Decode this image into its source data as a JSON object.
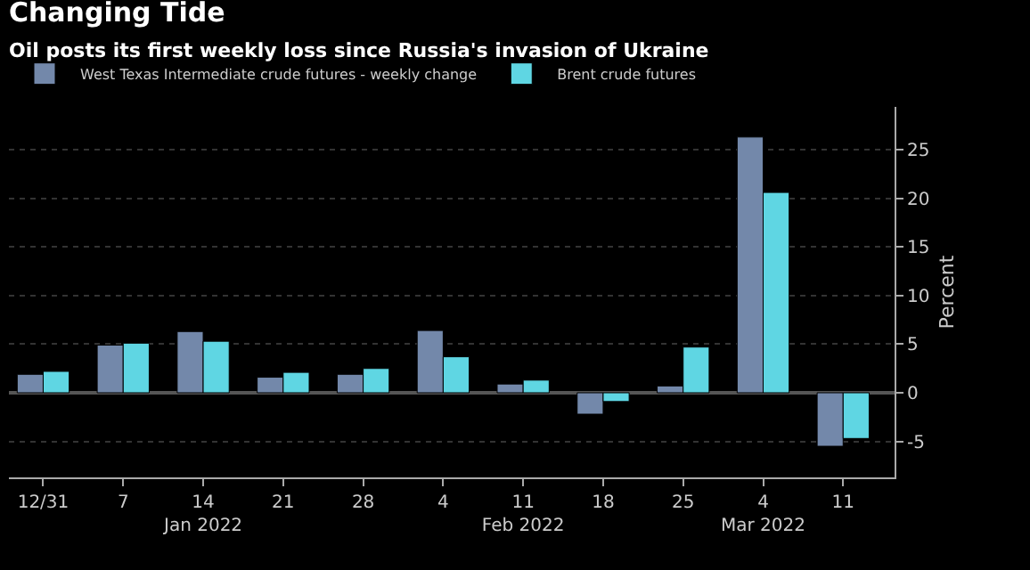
{
  "chart_data": {
    "type": "bar",
    "title": "Changing Tide",
    "subtitle": "Oil posts its first weekly loss since Russia's invasion of Ukraine",
    "ylabel": "Percent",
    "x": [
      "2021-12-31",
      "2022-01-07",
      "2022-01-14",
      "2022-01-21",
      "2022-01-28",
      "2022-02-04",
      "2022-02-11",
      "2022-02-18",
      "2022-02-25",
      "2022-03-04",
      "2022-03-11"
    ],
    "series": [
      {
        "name": "West Texas Intermediate crude futures - weekly change",
        "color": "#7388aa",
        "values": [
          1.9,
          4.9,
          6.3,
          1.6,
          1.9,
          6.4,
          0.9,
          -2.2,
          0.7,
          26.3,
          -5.5
        ]
      },
      {
        "name": "Brent crude futures",
        "color": "#5fd6e3",
        "values": [
          2.2,
          5.1,
          5.3,
          2.1,
          2.5,
          3.7,
          1.3,
          -0.9,
          4.7,
          20.6,
          -4.7
        ]
      }
    ],
    "xlim": [
      "2021-12-28",
      "2022-03-15T12:00"
    ],
    "xticks": [
      {
        "value": "2021-12-31",
        "label": "12/31"
      },
      {
        "value": "2022-01-07",
        "label": "7"
      },
      {
        "value": "2022-01-14",
        "label": "14\nJan 2022"
      },
      {
        "value": "2022-01-21",
        "label": "21"
      },
      {
        "value": "2022-01-28",
        "label": "28"
      },
      {
        "value": "2022-02-04",
        "label": "4"
      },
      {
        "value": "2022-02-11",
        "label": "11\nFeb 2022"
      },
      {
        "value": "2022-02-18",
        "label": "18"
      },
      {
        "value": "2022-02-25",
        "label": "25"
      },
      {
        "value": "2022-03-04",
        "label": "4\nMar 2022"
      },
      {
        "value": "2022-03-11",
        "label": "11"
      }
    ],
    "ylim": [
      -8.7,
      29.4
    ],
    "yticks": [
      -5,
      0,
      5,
      10,
      15,
      20,
      25
    ],
    "grid": "y",
    "legend": "top left"
  }
}
